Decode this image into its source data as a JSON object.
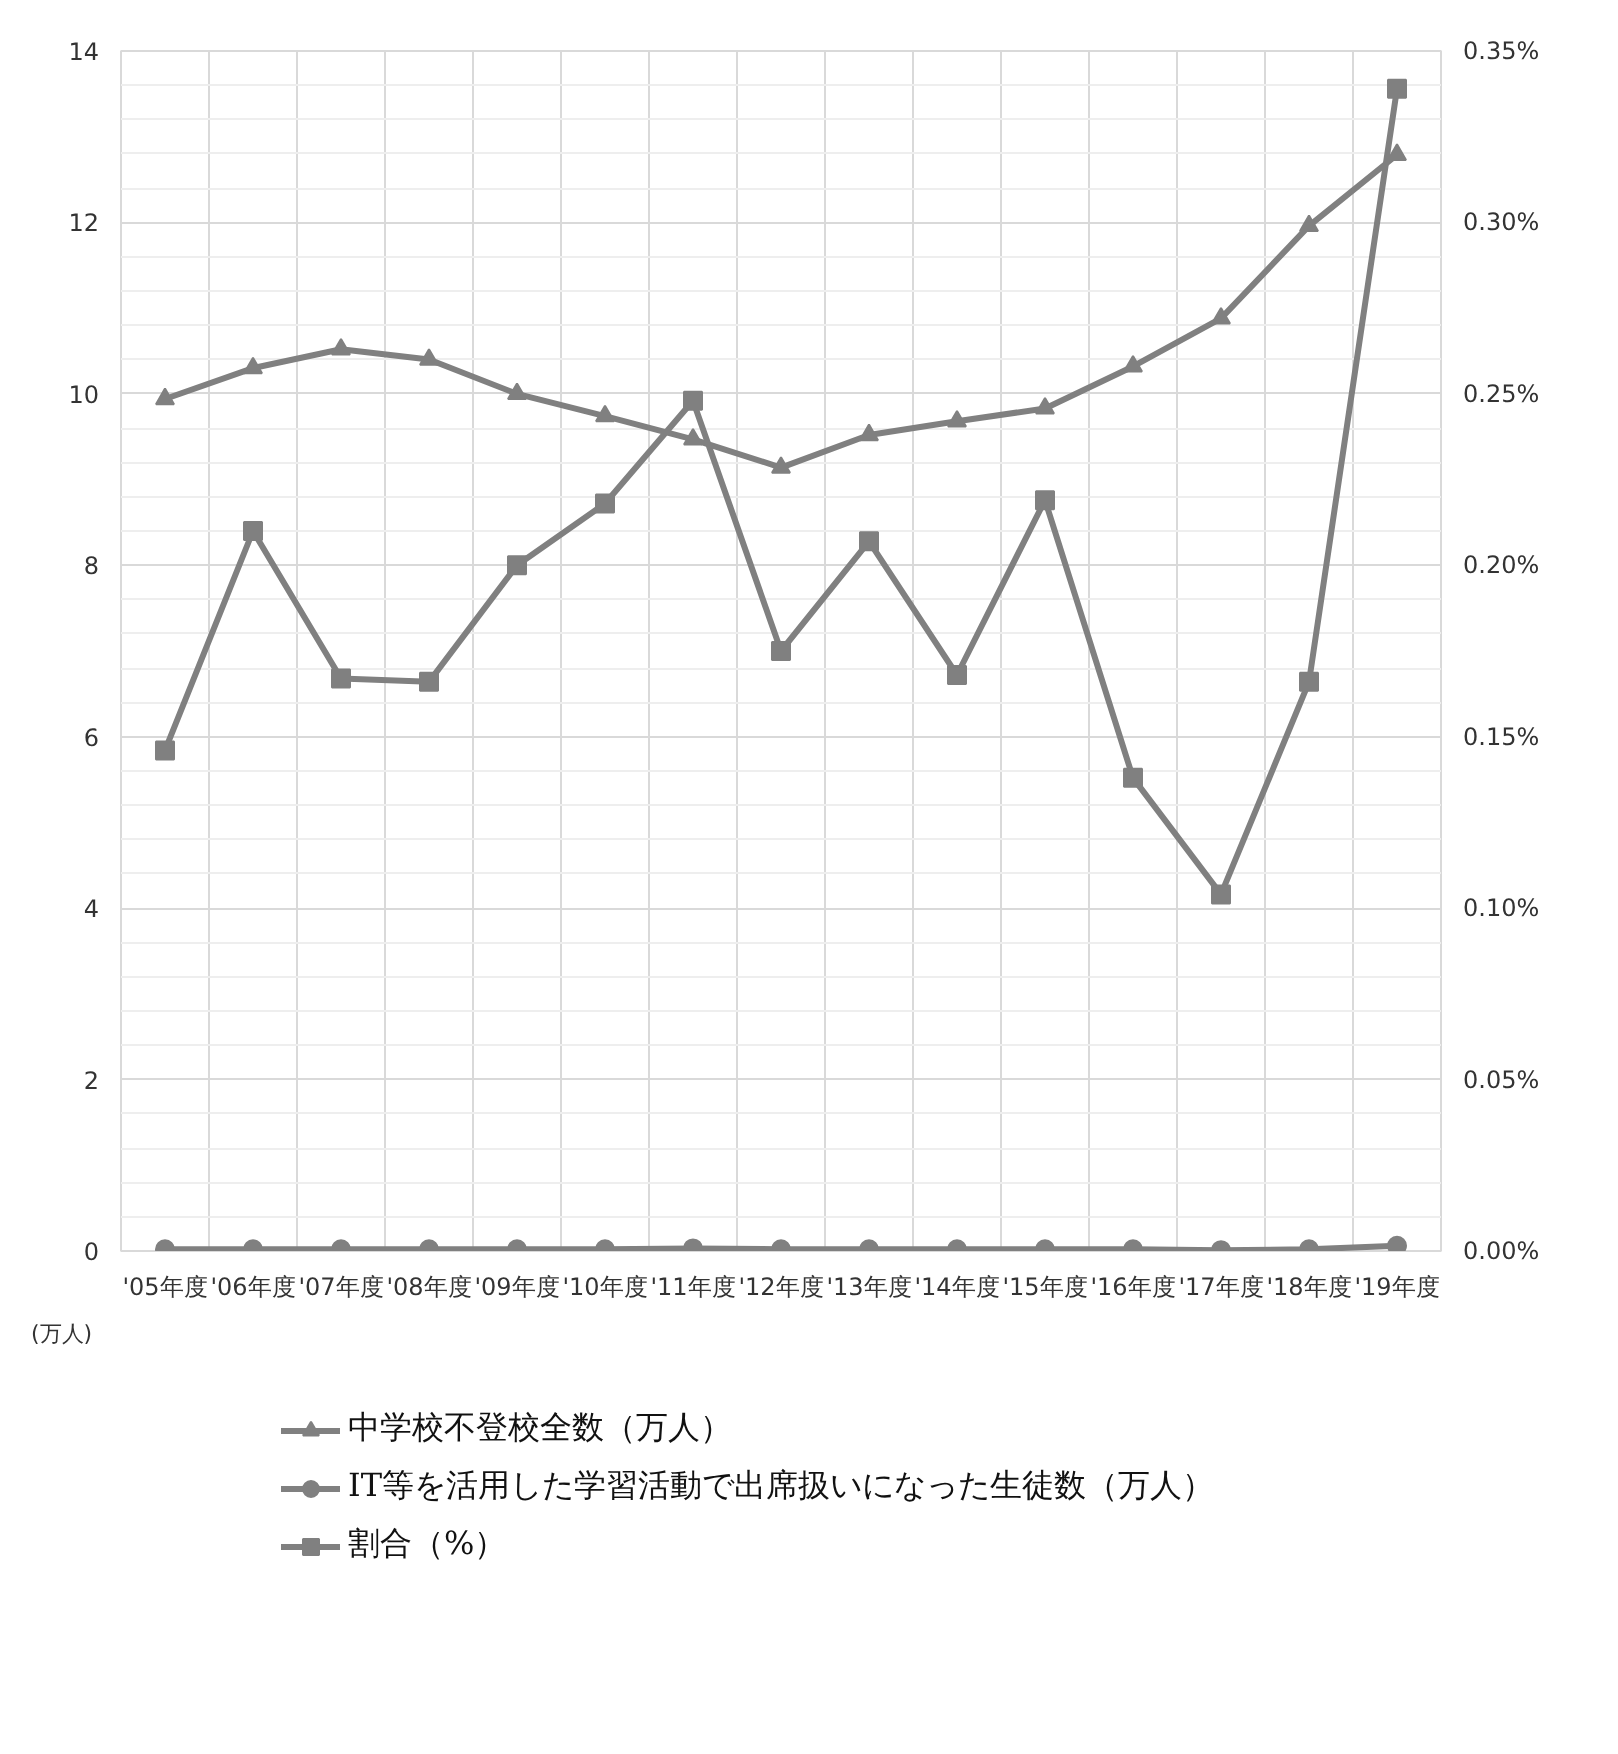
{
  "chart_data": {
    "type": "line",
    "categories": [
      "'05年度",
      "'06年度",
      "'07年度",
      "'08年度",
      "'09年度",
      "'10年度",
      "'11年度",
      "'12年度",
      "'13年度",
      "'14年度",
      "'15年度",
      "'16年度",
      "'17年度",
      "'18年度",
      "'19年度"
    ],
    "ylabel": "(万人)",
    "ylim": [
      0,
      14
    ],
    "yticks": [
      0,
      2,
      4,
      6,
      8,
      10,
      12,
      14
    ],
    "y2lim": [
      0,
      0.35
    ],
    "y2ticks": [
      {
        "value": 0,
        "label": "0.00%"
      },
      {
        "value": 0.05,
        "label": "0.05%"
      },
      {
        "value": 0.1,
        "label": "0.10%"
      },
      {
        "value": 0.15,
        "label": "0.15%"
      },
      {
        "value": 0.2,
        "label": "0.20%"
      },
      {
        "value": 0.25,
        "label": "0.25%"
      },
      {
        "value": 0.3,
        "label": "0.30%"
      },
      {
        "value": 0.35,
        "label": "0.35%"
      }
    ],
    "grid": true,
    "legend": "bottom",
    "series": [
      {
        "name": "中学校不登校全数（万人）",
        "color": "#808080",
        "marker": "triangle",
        "values": [
          9.94,
          10.3,
          10.52,
          10.4,
          10.0,
          9.74,
          9.47,
          9.14,
          9.52,
          9.68,
          9.83,
          10.32,
          10.88,
          11.96,
          12.79
        ]
      },
      {
        "name": "IT等を活用した学習活動で出席扱いになった生徒数（万人）",
        "color": "#808080",
        "marker": "circle",
        "values": [
          0.02,
          0.02,
          0.02,
          0.02,
          0.02,
          0.02,
          0.03,
          0.02,
          0.02,
          0.02,
          0.02,
          0.02,
          0.01,
          0.02,
          0.06
        ]
      },
      {
        "name": "割合（%）",
        "color": "#808080",
        "marker": "square",
        "axis": "y2",
        "values": [
          0.146,
          0.21,
          0.167,
          0.166,
          0.2,
          0.218,
          0.248,
          0.175,
          0.207,
          0.168,
          0.219,
          0.138,
          0.104,
          0.166,
          0.339
        ]
      }
    ]
  }
}
